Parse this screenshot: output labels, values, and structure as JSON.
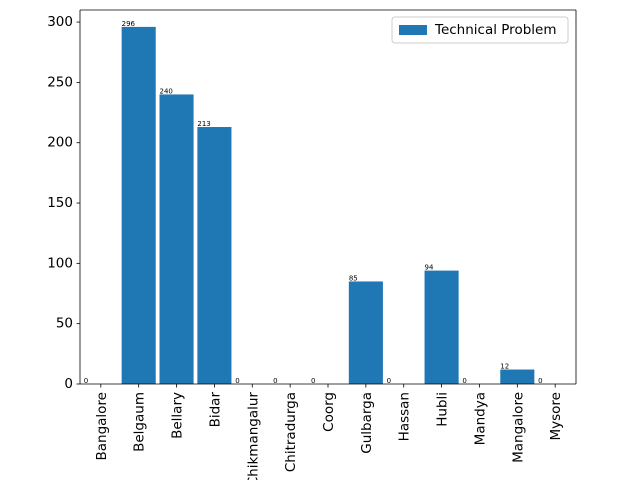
{
  "chart_data": {
    "type": "bar",
    "categories": [
      "Bangalore",
      "Belgaum",
      "Bellary",
      "Bidar",
      "Chikmangalur",
      "Chitradurga",
      "Coorg",
      "Gulbarga",
      "Hassan",
      "Hubli",
      "Mandya",
      "Mangalore",
      "Mysore"
    ],
    "series": [
      {
        "name": "Technical Problem",
        "values": [
          0,
          296,
          240,
          213,
          0,
          0,
          0,
          85,
          0,
          94,
          0,
          12,
          0
        ],
        "color": "#1f77b4"
      }
    ],
    "data_labels": [
      "0",
      "296",
      "240",
      "213",
      "0",
      "0",
      "0",
      "85",
      "0",
      "94",
      "0",
      "12",
      "0"
    ],
    "title": "",
    "xlabel": "",
    "ylabel": "",
    "ylim": [
      0,
      310
    ],
    "yticks": [
      0,
      50,
      100,
      150,
      200,
      250,
      300
    ],
    "ytick_labels": [
      "0",
      "50",
      "100",
      "150",
      "200",
      "250",
      "300"
    ],
    "grid": false,
    "legend": {
      "position": "top-right",
      "entries": [
        "Technical Problem"
      ]
    }
  }
}
